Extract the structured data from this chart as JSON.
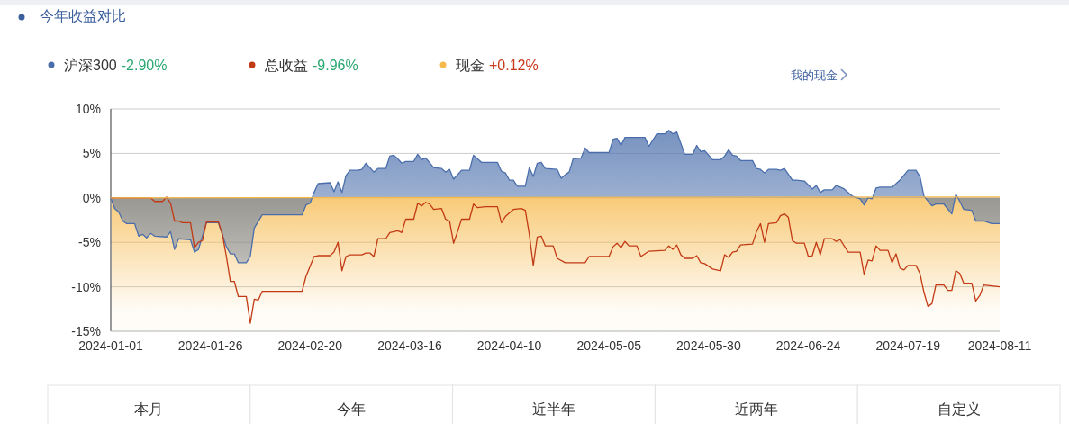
{
  "chart_data": {
    "type": "area",
    "title": "今年收益对比",
    "xlim": [
      "2024-01-01",
      "2024-08-11"
    ],
    "xticks": [
      "2024-01-01",
      "2024-01-26",
      "2024-02-20",
      "2024-03-16",
      "2024-04-10",
      "2024-05-05",
      "2024-05-30",
      "2024-06-24",
      "2024-07-19",
      "2024-08-11"
    ],
    "ylim": [
      -15,
      10
    ],
    "yticks": [
      {
        "value": 10,
        "label": "10%"
      },
      {
        "value": 5,
        "label": "5%"
      },
      {
        "value": 0,
        "label": "0%"
      },
      {
        "value": -5,
        "label": "-5%"
      },
      {
        "value": -10,
        "label": "-10%"
      },
      {
        "value": -15,
        "label": "-15%"
      }
    ],
    "grid": "y",
    "legend": "top left",
    "series": [
      {
        "name": "沪深300",
        "color": "#4a6eab",
        "x": [
          "2024-01-01",
          "2024-01-02",
          "2024-01-03",
          "2024-01-04",
          "2024-01-05",
          "2024-01-07",
          "2024-01-08",
          "2024-01-09",
          "2024-01-10",
          "2024-01-11",
          "2024-01-12",
          "2024-01-15",
          "2024-01-16",
          "2024-01-17",
          "2024-01-18",
          "2024-01-21",
          "2024-01-22",
          "2024-01-23",
          "2024-01-25",
          "2024-01-28",
          "2024-01-30",
          "2024-01-31",
          "2024-02-01",
          "2024-02-02",
          "2024-02-04",
          "2024-02-05",
          "2024-02-06",
          "2024-02-08",
          "2024-02-18",
          "2024-02-19",
          "2024-02-20",
          "2024-02-21",
          "2024-02-22",
          "2024-02-25",
          "2024-02-26",
          "2024-02-27",
          "2024-02-28",
          "2024-02-29",
          "2024-03-01",
          "2024-03-03",
          "2024-03-04",
          "2024-03-05",
          "2024-03-07",
          "2024-03-08",
          "2024-03-10",
          "2024-03-11",
          "2024-03-12",
          "2024-03-13",
          "2024-03-14",
          "2024-03-15",
          "2024-03-17",
          "2024-03-18",
          "2024-03-19",
          "2024-03-20",
          "2024-03-22",
          "2024-03-24",
          "2024-03-25",
          "2024-03-26",
          "2024-03-27",
          "2024-03-29",
          "2024-03-31",
          "2024-04-01",
          "2024-04-03",
          "2024-04-07",
          "2024-04-08",
          "2024-04-09",
          "2024-04-10",
          "2024-04-11",
          "2024-04-12",
          "2024-04-14",
          "2024-04-15",
          "2024-04-16",
          "2024-04-17",
          "2024-04-18",
          "2024-04-19",
          "2024-04-22",
          "2024-04-23",
          "2024-04-24",
          "2024-04-25",
          "2024-04-26",
          "2024-04-28",
          "2024-04-29",
          "2024-04-30",
          "2024-05-05",
          "2024-05-06",
          "2024-05-07",
          "2024-05-08",
          "2024-05-09",
          "2024-05-14",
          "2024-05-15",
          "2024-05-17",
          "2024-05-19",
          "2024-05-20",
          "2024-05-21",
          "2024-05-22",
          "2024-05-24",
          "2024-05-26",
          "2024-05-27",
          "2024-05-28",
          "2024-05-29",
          "2024-05-31",
          "2024-06-02",
          "2024-06-03",
          "2024-06-04",
          "2024-06-05",
          "2024-06-06",
          "2024-06-07",
          "2024-06-10",
          "2024-06-11",
          "2024-06-12",
          "2024-06-13",
          "2024-06-14",
          "2024-06-16",
          "2024-06-17",
          "2024-06-18",
          "2024-06-20",
          "2024-06-21",
          "2024-06-23",
          "2024-06-25",
          "2024-06-26",
          "2024-06-27",
          "2024-06-28",
          "2024-06-30",
          "2024-07-01",
          "2024-07-03",
          "2024-07-05",
          "2024-07-07",
          "2024-07-08",
          "2024-07-09",
          "2024-07-10",
          "2024-07-11",
          "2024-07-12",
          "2024-07-15",
          "2024-07-16",
          "2024-07-17",
          "2024-07-19",
          "2024-07-21",
          "2024-07-22",
          "2024-07-23",
          "2024-07-25",
          "2024-07-26",
          "2024-07-28",
          "2024-07-30",
          "2024-07-31",
          "2024-08-01",
          "2024-08-02",
          "2024-08-04",
          "2024-08-05",
          "2024-08-07",
          "2024-08-09",
          "2024-08-11"
        ],
        "values": [
          0,
          -1.2,
          -1.6,
          -2.6,
          -2.9,
          -2.9,
          -4.3,
          -4.1,
          -4.5,
          -4.0,
          -4.3,
          -4.4,
          -3.8,
          -5.8,
          -4.6,
          -4.7,
          -6.1,
          -5.8,
          -2.8,
          -2.8,
          -5.5,
          -6.3,
          -6.3,
          -7.3,
          -7.3,
          -6.6,
          -3.4,
          -1.9,
          -1.9,
          -0.8,
          -0.6,
          0.6,
          1.6,
          1.7,
          0.7,
          1.8,
          0.6,
          2.5,
          3.1,
          3.1,
          3.2,
          3.9,
          2.9,
          3.3,
          3.3,
          4.7,
          4.8,
          4.4,
          3.9,
          4.1,
          4.1,
          4.9,
          4.3,
          4.5,
          3.4,
          3.3,
          2.9,
          3.2,
          2.1,
          3.1,
          3.1,
          4.8,
          4.0,
          4.0,
          3.0,
          2.8,
          2.0,
          2.0,
          1.3,
          1.3,
          3.4,
          2.4,
          3.9,
          4.0,
          3.3,
          3.2,
          2.2,
          2.6,
          2.9,
          4.4,
          4.5,
          5.6,
          5.1,
          5.1,
          6.6,
          6.7,
          5.9,
          6.8,
          6.8,
          5.8,
          7.2,
          7.2,
          7.6,
          7.2,
          7.4,
          4.9,
          4.9,
          5.9,
          5.2,
          5.3,
          4.3,
          4.3,
          4.7,
          5.4,
          4.8,
          4.7,
          4.2,
          4.2,
          3.3,
          3.2,
          2.8,
          3.2,
          3.2,
          3.1,
          3.3,
          2.0,
          2.0,
          1.9,
          1.0,
          1.4,
          0.6,
          0.9,
          0.9,
          1.4,
          1.0,
          0.2,
          -0.1,
          -0.8,
          0,
          -0.1,
          1.1,
          1.2,
          1.2,
          1.6,
          2.0,
          3.1,
          3.1,
          2.4,
          0.2,
          -0.9,
          -0.7,
          -0.7,
          -1.8,
          0.4,
          -0.4,
          -1.3,
          -1.4,
          -2.6,
          -2.6,
          -2.9,
          -2.9
        ]
      },
      {
        "name": "总收益",
        "type": "line",
        "color": "#c23a14",
        "x": [
          "2024-01-01",
          "2024-01-08",
          "2024-01-11",
          "2024-01-12",
          "2024-01-14",
          "2024-01-15",
          "2024-01-16",
          "2024-01-17",
          "2024-01-18",
          "2024-01-19",
          "2024-01-21",
          "2024-01-22",
          "2024-01-23",
          "2024-01-24",
          "2024-01-25",
          "2024-01-28",
          "2024-01-29",
          "2024-01-30",
          "2024-01-31",
          "2024-02-01",
          "2024-02-02",
          "2024-02-04",
          "2024-02-05",
          "2024-02-06",
          "2024-02-07",
          "2024-02-08",
          "2024-02-18",
          "2024-02-19",
          "2024-02-21",
          "2024-02-22",
          "2024-02-25",
          "2024-02-26",
          "2024-02-27",
          "2024-02-28",
          "2024-02-29",
          "2024-03-01",
          "2024-03-04",
          "2024-03-05",
          "2024-03-06",
          "2024-03-07",
          "2024-03-08",
          "2024-03-10",
          "2024-03-11",
          "2024-03-13",
          "2024-03-14",
          "2024-03-15",
          "2024-03-17",
          "2024-03-18",
          "2024-03-19",
          "2024-03-20",
          "2024-03-21",
          "2024-03-22",
          "2024-03-24",
          "2024-03-25",
          "2024-03-26",
          "2024-03-27",
          "2024-03-28",
          "2024-03-29",
          "2024-03-31",
          "2024-04-01",
          "2024-04-02",
          "2024-04-04",
          "2024-04-07",
          "2024-04-08",
          "2024-04-09",
          "2024-04-10",
          "2024-04-11",
          "2024-04-13",
          "2024-04-14",
          "2024-04-15",
          "2024-04-16",
          "2024-04-17",
          "2024-04-18",
          "2024-04-19",
          "2024-04-21",
          "2024-04-22",
          "2024-04-24",
          "2024-04-29",
          "2024-04-30",
          "2024-05-05",
          "2024-05-06",
          "2024-05-07",
          "2024-05-08",
          "2024-05-09",
          "2024-05-10",
          "2024-05-12",
          "2024-05-13",
          "2024-05-15",
          "2024-05-19",
          "2024-05-20",
          "2024-05-21",
          "2024-05-22",
          "2024-05-23",
          "2024-05-24",
          "2024-05-26",
          "2024-05-27",
          "2024-05-28",
          "2024-05-29",
          "2024-05-31",
          "2024-06-02",
          "2024-06-03",
          "2024-06-04",
          "2024-06-05",
          "2024-06-06",
          "2024-06-07",
          "2024-06-10",
          "2024-06-11",
          "2024-06-12",
          "2024-06-13",
          "2024-06-14",
          "2024-06-16",
          "2024-06-17",
          "2024-06-18",
          "2024-06-19",
          "2024-06-20",
          "2024-06-21",
          "2024-06-23",
          "2024-06-24",
          "2024-06-25",
          "2024-06-26",
          "2024-06-27",
          "2024-06-28",
          "2024-06-30",
          "2024-07-01",
          "2024-07-02",
          "2024-07-04",
          "2024-07-07",
          "2024-07-08",
          "2024-07-09",
          "2024-07-10",
          "2024-07-11",
          "2024-07-12",
          "2024-07-14",
          "2024-07-15",
          "2024-07-16",
          "2024-07-17",
          "2024-07-18",
          "2024-07-19",
          "2024-07-21",
          "2024-07-22",
          "2024-07-23",
          "2024-07-24",
          "2024-07-25",
          "2024-07-26",
          "2024-07-28",
          "2024-07-29",
          "2024-07-30",
          "2024-07-31",
          "2024-08-01",
          "2024-08-02",
          "2024-08-04",
          "2024-08-05",
          "2024-08-06",
          "2024-08-07",
          "2024-08-09",
          "2024-08-11"
        ],
        "values": [
          0,
          0,
          0,
          -0.4,
          -0.4,
          0.1,
          -0.6,
          -2.6,
          -2.6,
          -2.8,
          -2.8,
          -5.6,
          -5.0,
          -4.8,
          -2.7,
          -2.7,
          -4.1,
          -6.6,
          -9.4,
          -9.4,
          -11.1,
          -11.1,
          -14.1,
          -11.4,
          -11.5,
          -10.5,
          -10.5,
          -8.8,
          -6.6,
          -6.5,
          -6.5,
          -6.1,
          -5.0,
          -8.2,
          -6.6,
          -6.4,
          -6.4,
          -6.2,
          -6.2,
          -6.6,
          -4.6,
          -4.6,
          -3.9,
          -3.7,
          -3.9,
          -2.4,
          -2.4,
          -0.6,
          -0.9,
          -0.5,
          -0.7,
          -1.3,
          -1.2,
          -2.4,
          -2.6,
          -5.1,
          -3.8,
          -2.4,
          -2.4,
          -0.7,
          -1.1,
          -1.0,
          -1.0,
          -2.8,
          -2.1,
          -1.7,
          -1.3,
          -1.2,
          -1.4,
          -4.1,
          -7.6,
          -4.4,
          -4.3,
          -5.4,
          -5.4,
          -6.8,
          -7.3,
          -7.3,
          -6.6,
          -6.6,
          -5.5,
          -5.1,
          -5.6,
          -4.9,
          -5.4,
          -5.4,
          -6.6,
          -6.0,
          -5.9,
          -5.4,
          -5.8,
          -5.3,
          -6.4,
          -6.8,
          -6.8,
          -6.5,
          -7.3,
          -7.4,
          -8.0,
          -8.2,
          -6.4,
          -6.7,
          -6.1,
          -6.0,
          -5.3,
          -5.2,
          -3.8,
          -2.9,
          -5.0,
          -2.9,
          -2.8,
          -2.0,
          -1.8,
          -2.2,
          -4.8,
          -5.1,
          -5.1,
          -6.6,
          -6.5,
          -5.0,
          -6.4,
          -4.6,
          -4.6,
          -4.9,
          -4.7,
          -6.1,
          -6.1,
          -8.6,
          -7.0,
          -7.1,
          -5.4,
          -5.9,
          -5.9,
          -7.3,
          -6.3,
          -7.9,
          -8.1,
          -7.6,
          -7.6,
          -8.5,
          -10.6,
          -12.2,
          -11.9,
          -9.8,
          -9.8,
          -10.4,
          -10.4,
          -8.2,
          -8.5,
          -9.6,
          -9.6,
          -11.6,
          -11.0,
          -9.8,
          -9.9,
          -10.0
        ]
      },
      {
        "name": "现金",
        "type": "line",
        "color": "#f6b94c",
        "x": [
          "2024-01-01",
          "2024-08-11"
        ],
        "values": [
          0,
          0.1
        ]
      }
    ],
    "bands": [
      {
        "axis": "y",
        "from": -15,
        "to": 0,
        "color": "#f6b94c"
      }
    ],
    "annotations": [
      "-2.90%",
      "-9.96%",
      "+0.12%",
      "我的现金",
      "本月",
      "今年",
      "近半年",
      "近两年",
      "自定义"
    ]
  }
}
